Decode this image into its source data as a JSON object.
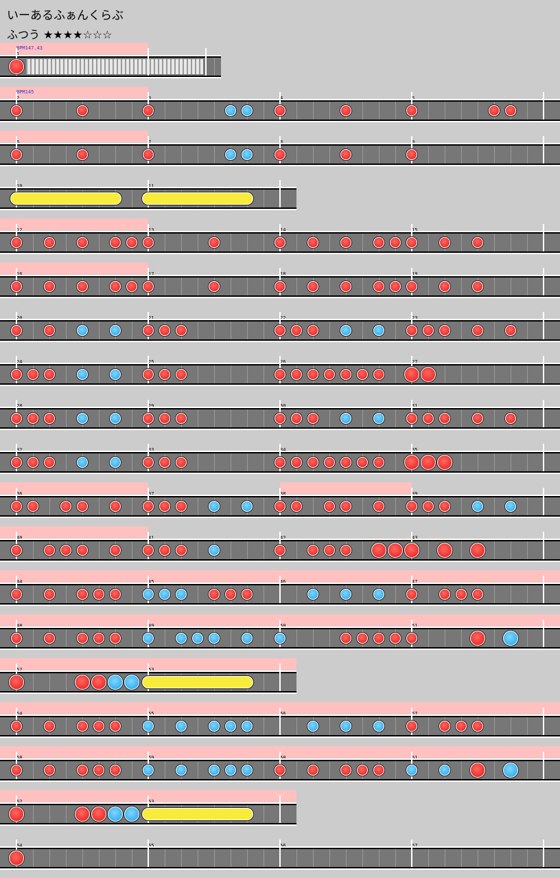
{
  "header": {
    "title": "いーあるふぁんくらぶ",
    "difficulty": "ふつう ★★★★☆☆☆"
  },
  "colors": {
    "background": "#cccccc",
    "lane": "#777777",
    "gogo_highlight": "#ffc0c0",
    "don": "#ee2f2f",
    "ka": "#3cb2ee",
    "roll": "#f8ec3a"
  },
  "rows": [
    {
      "measures": [
        1
      ],
      "bpm": "BPM147.43",
      "width": 322,
      "hl": [
        [
          0,
          216
        ]
      ],
      "stripe": [
        38,
        296
      ],
      "notes": [
        {
          "b": 0,
          "t": "D",
          "big": true
        }
      ]
    },
    {
      "measures": [
        2,
        3,
        4,
        5
      ],
      "bpm": "BPM145",
      "hl": [
        [
          0,
          216
        ]
      ],
      "notes": [
        {
          "b": 0,
          "t": "d"
        },
        {
          "b": 4,
          "t": "d"
        },
        {
          "b": 8,
          "t": "d"
        },
        {
          "b": 13,
          "t": "k"
        },
        {
          "b": 14,
          "t": "k"
        },
        {
          "b": 16,
          "t": "d"
        },
        {
          "b": 20,
          "t": "d"
        },
        {
          "b": 24,
          "t": "d"
        },
        {
          "b": 29,
          "t": "d"
        },
        {
          "b": 30,
          "t": "d"
        }
      ]
    },
    {
      "measures": [
        6,
        7,
        8,
        9
      ],
      "hl": [
        [
          0,
          216
        ]
      ],
      "notes": [
        {
          "b": 0,
          "t": "d"
        },
        {
          "b": 4,
          "t": "d"
        },
        {
          "b": 8,
          "t": "d"
        },
        {
          "b": 13,
          "t": "k"
        },
        {
          "b": 14,
          "t": "k"
        },
        {
          "b": 16,
          "t": "d"
        },
        {
          "b": 20,
          "t": "d"
        },
        {
          "b": 24,
          "t": "d"
        }
      ]
    },
    {
      "measures": [
        10,
        11
      ],
      "width": 432,
      "hl": [],
      "rolls": [
        [
          0,
          6
        ],
        [
          8,
          14
        ]
      ],
      "notes": []
    },
    {
      "measures": [
        12,
        13,
        14,
        15
      ],
      "hl": [
        [
          0,
          216
        ]
      ],
      "notes": [
        {
          "b": 0,
          "t": "d"
        },
        {
          "b": 2,
          "t": "d"
        },
        {
          "b": 4,
          "t": "d"
        },
        {
          "b": 6,
          "t": "d"
        },
        {
          "b": 7,
          "t": "d"
        },
        {
          "b": 8,
          "t": "d"
        },
        {
          "b": 12,
          "t": "d"
        },
        {
          "b": 16,
          "t": "d"
        },
        {
          "b": 18,
          "t": "d"
        },
        {
          "b": 20,
          "t": "d"
        },
        {
          "b": 22,
          "t": "d"
        },
        {
          "b": 23,
          "t": "d"
        },
        {
          "b": 24,
          "t": "d"
        },
        {
          "b": 26,
          "t": "d"
        },
        {
          "b": 28,
          "t": "d"
        }
      ]
    },
    {
      "measures": [
        16,
        17,
        18,
        19
      ],
      "hl": [
        [
          0,
          216
        ]
      ],
      "notes": [
        {
          "b": 0,
          "t": "d"
        },
        {
          "b": 2,
          "t": "d"
        },
        {
          "b": 4,
          "t": "d"
        },
        {
          "b": 6,
          "t": "d"
        },
        {
          "b": 7,
          "t": "d"
        },
        {
          "b": 8,
          "t": "d"
        },
        {
          "b": 12,
          "t": "d"
        },
        {
          "b": 16,
          "t": "d"
        },
        {
          "b": 18,
          "t": "d"
        },
        {
          "b": 20,
          "t": "d"
        },
        {
          "b": 22,
          "t": "d"
        },
        {
          "b": 23,
          "t": "d"
        },
        {
          "b": 24,
          "t": "d"
        },
        {
          "b": 26,
          "t": "d"
        },
        {
          "b": 28,
          "t": "d"
        }
      ]
    },
    {
      "measures": [
        20,
        21,
        22,
        23
      ],
      "hl": [],
      "notes": [
        {
          "b": 0,
          "t": "d"
        },
        {
          "b": 2,
          "t": "d"
        },
        {
          "b": 4,
          "t": "k"
        },
        {
          "b": 6,
          "t": "k"
        },
        {
          "b": 8,
          "t": "d"
        },
        {
          "b": 9,
          "t": "d"
        },
        {
          "b": 10,
          "t": "d"
        },
        {
          "b": 16,
          "t": "d"
        },
        {
          "b": 17,
          "t": "d"
        },
        {
          "b": 18,
          "t": "d"
        },
        {
          "b": 20,
          "t": "k"
        },
        {
          "b": 22,
          "t": "k"
        },
        {
          "b": 24,
          "t": "d"
        },
        {
          "b": 25,
          "t": "d"
        },
        {
          "b": 26,
          "t": "d"
        },
        {
          "b": 28,
          "t": "d"
        },
        {
          "b": 30,
          "t": "d"
        }
      ]
    },
    {
      "measures": [
        24,
        25,
        26,
        27
      ],
      "hl": [],
      "notes": [
        {
          "b": 0,
          "t": "d"
        },
        {
          "b": 1,
          "t": "d"
        },
        {
          "b": 2,
          "t": "d"
        },
        {
          "b": 4,
          "t": "k"
        },
        {
          "b": 6,
          "t": "k"
        },
        {
          "b": 8,
          "t": "d"
        },
        {
          "b": 9,
          "t": "d"
        },
        {
          "b": 10,
          "t": "d"
        },
        {
          "b": 16,
          "t": "d"
        },
        {
          "b": 17,
          "t": "d"
        },
        {
          "b": 18,
          "t": "d"
        },
        {
          "b": 19,
          "t": "d"
        },
        {
          "b": 20,
          "t": "d"
        },
        {
          "b": 21,
          "t": "d"
        },
        {
          "b": 22,
          "t": "d"
        },
        {
          "b": 24,
          "t": "D",
          "big": true
        },
        {
          "b": 25,
          "t": "D",
          "big": true
        }
      ]
    },
    {
      "measures": [
        28,
        29,
        30,
        31
      ],
      "hl": [],
      "notes": [
        {
          "b": 0,
          "t": "d"
        },
        {
          "b": 1,
          "t": "d"
        },
        {
          "b": 2,
          "t": "d"
        },
        {
          "b": 4,
          "t": "k"
        },
        {
          "b": 6,
          "t": "k"
        },
        {
          "b": 8,
          "t": "d"
        },
        {
          "b": 9,
          "t": "d"
        },
        {
          "b": 10,
          "t": "d"
        },
        {
          "b": 16,
          "t": "d"
        },
        {
          "b": 17,
          "t": "d"
        },
        {
          "b": 18,
          "t": "d"
        },
        {
          "b": 20,
          "t": "k"
        },
        {
          "b": 22,
          "t": "k"
        },
        {
          "b": 24,
          "t": "d"
        },
        {
          "b": 25,
          "t": "d"
        },
        {
          "b": 26,
          "t": "d"
        },
        {
          "b": 28,
          "t": "d"
        },
        {
          "b": 30,
          "t": "d"
        }
      ]
    },
    {
      "measures": [
        32,
        33,
        34,
        35
      ],
      "hl": [],
      "notes": [
        {
          "b": 0,
          "t": "d"
        },
        {
          "b": 1,
          "t": "d"
        },
        {
          "b": 2,
          "t": "d"
        },
        {
          "b": 4,
          "t": "k"
        },
        {
          "b": 6,
          "t": "k"
        },
        {
          "b": 8,
          "t": "d"
        },
        {
          "b": 9,
          "t": "d"
        },
        {
          "b": 10,
          "t": "d"
        },
        {
          "b": 16,
          "t": "d"
        },
        {
          "b": 17,
          "t": "d"
        },
        {
          "b": 18,
          "t": "d"
        },
        {
          "b": 19,
          "t": "d"
        },
        {
          "b": 20,
          "t": "d"
        },
        {
          "b": 21,
          "t": "d"
        },
        {
          "b": 22,
          "t": "d"
        },
        {
          "b": 24,
          "t": "D",
          "big": true
        },
        {
          "b": 25,
          "t": "D",
          "big": true
        },
        {
          "b": 26,
          "t": "D",
          "big": true
        }
      ]
    },
    {
      "measures": [
        36,
        37,
        38,
        39
      ],
      "hl": [
        [
          0,
          216
        ],
        [
          408,
          600
        ]
      ],
      "notes": [
        {
          "b": 0,
          "t": "d"
        },
        {
          "b": 1,
          "t": "d"
        },
        {
          "b": 3,
          "t": "d"
        },
        {
          "b": 4,
          "t": "d"
        },
        {
          "b": 6,
          "t": "d"
        },
        {
          "b": 8,
          "t": "d"
        },
        {
          "b": 9,
          "t": "d"
        },
        {
          "b": 10,
          "t": "d"
        },
        {
          "b": 12,
          "t": "k"
        },
        {
          "b": 14,
          "t": "k"
        },
        {
          "b": 16,
          "t": "d"
        },
        {
          "b": 17,
          "t": "d"
        },
        {
          "b": 19,
          "t": "d"
        },
        {
          "b": 20,
          "t": "d"
        },
        {
          "b": 22,
          "t": "d"
        },
        {
          "b": 24,
          "t": "d"
        },
        {
          "b": 25,
          "t": "d"
        },
        {
          "b": 26,
          "t": "d"
        },
        {
          "b": 28,
          "t": "k"
        },
        {
          "b": 30,
          "t": "k"
        }
      ]
    },
    {
      "measures": [
        40,
        41,
        42,
        43
      ],
      "hl": [
        [
          0,
          216
        ]
      ],
      "notes": [
        {
          "b": 0,
          "t": "d"
        },
        {
          "b": 2,
          "t": "d"
        },
        {
          "b": 3,
          "t": "d"
        },
        {
          "b": 4,
          "t": "d"
        },
        {
          "b": 6,
          "t": "d"
        },
        {
          "b": 8,
          "t": "d"
        },
        {
          "b": 9,
          "t": "d"
        },
        {
          "b": 10,
          "t": "d"
        },
        {
          "b": 12,
          "t": "k"
        },
        {
          "b": 16,
          "t": "d"
        },
        {
          "b": 18,
          "t": "d"
        },
        {
          "b": 19,
          "t": "d"
        },
        {
          "b": 20,
          "t": "d"
        },
        {
          "b": 22,
          "t": "D",
          "big": true
        },
        {
          "b": 23,
          "t": "D",
          "big": true
        },
        {
          "b": 24,
          "t": "D",
          "big": true
        },
        {
          "b": 26,
          "t": "D",
          "big": true
        },
        {
          "b": 28,
          "t": "D",
          "big": true
        }
      ]
    },
    {
      "measures": [
        44,
        45,
        46,
        47
      ],
      "hl": [
        [
          0,
          816
        ]
      ],
      "notes": [
        {
          "b": 0,
          "t": "d"
        },
        {
          "b": 2,
          "t": "d"
        },
        {
          "b": 4,
          "t": "d"
        },
        {
          "b": 5,
          "t": "d"
        },
        {
          "b": 6,
          "t": "d"
        },
        {
          "b": 8,
          "t": "k"
        },
        {
          "b": 9,
          "t": "k"
        },
        {
          "b": 10,
          "t": "k"
        },
        {
          "b": 12,
          "t": "d"
        },
        {
          "b": 13,
          "t": "d"
        },
        {
          "b": 14,
          "t": "d"
        },
        {
          "b": 18,
          "t": "k"
        },
        {
          "b": 20,
          "t": "k"
        },
        {
          "b": 22,
          "t": "k"
        },
        {
          "b": 24,
          "t": "d"
        },
        {
          "b": 26,
          "t": "d"
        },
        {
          "b": 27,
          "t": "d"
        },
        {
          "b": 28,
          "t": "d"
        }
      ]
    },
    {
      "measures": [
        48,
        49,
        50,
        51
      ],
      "hl": [
        [
          0,
          816
        ]
      ],
      "notes": [
        {
          "b": 0,
          "t": "d"
        },
        {
          "b": 2,
          "t": "d"
        },
        {
          "b": 4,
          "t": "d"
        },
        {
          "b": 5,
          "t": "d"
        },
        {
          "b": 6,
          "t": "d"
        },
        {
          "b": 8,
          "t": "k"
        },
        {
          "b": 10,
          "t": "k"
        },
        {
          "b": 11,
          "t": "k"
        },
        {
          "b": 12,
          "t": "k"
        },
        {
          "b": 14,
          "t": "k"
        },
        {
          "b": 16,
          "t": "k"
        },
        {
          "b": 20,
          "t": "d"
        },
        {
          "b": 21,
          "t": "d"
        },
        {
          "b": 22,
          "t": "d"
        },
        {
          "b": 23,
          "t": "d"
        },
        {
          "b": 24,
          "t": "d"
        },
        {
          "b": 28,
          "t": "D",
          "big": true
        },
        {
          "b": 30,
          "t": "K",
          "big": true
        }
      ]
    },
    {
      "measures": [
        52,
        53
      ],
      "width": 432,
      "hl": [
        [
          0,
          432
        ]
      ],
      "rolls": [
        [
          8,
          14
        ]
      ],
      "notes": [
        {
          "b": 0,
          "t": "D",
          "big": true
        },
        {
          "b": 4,
          "t": "D",
          "big": true
        },
        {
          "b": 5,
          "t": "D",
          "big": true
        },
        {
          "b": 6,
          "t": "K",
          "big": true
        },
        {
          "b": 7,
          "t": "K",
          "big": true
        }
      ]
    },
    {
      "measures": [
        54,
        55,
        56,
        57
      ],
      "hl": [
        [
          0,
          816
        ]
      ],
      "notes": [
        {
          "b": 0,
          "t": "d"
        },
        {
          "b": 2,
          "t": "d"
        },
        {
          "b": 4,
          "t": "d"
        },
        {
          "b": 5,
          "t": "d"
        },
        {
          "b": 6,
          "t": "d"
        },
        {
          "b": 8,
          "t": "k"
        },
        {
          "b": 10,
          "t": "k"
        },
        {
          "b": 12,
          "t": "k"
        },
        {
          "b": 13,
          "t": "k"
        },
        {
          "b": 14,
          "t": "k"
        },
        {
          "b": 18,
          "t": "k"
        },
        {
          "b": 20,
          "t": "k"
        },
        {
          "b": 22,
          "t": "k"
        },
        {
          "b": 24,
          "t": "d"
        },
        {
          "b": 26,
          "t": "d"
        },
        {
          "b": 27,
          "t": "d"
        },
        {
          "b": 28,
          "t": "d"
        }
      ]
    },
    {
      "measures": [
        58,
        59,
        60,
        61
      ],
      "hl": [
        [
          0,
          816
        ]
      ],
      "notes": [
        {
          "b": 0,
          "t": "d"
        },
        {
          "b": 2,
          "t": "d"
        },
        {
          "b": 4,
          "t": "d"
        },
        {
          "b": 5,
          "t": "d"
        },
        {
          "b": 6,
          "t": "d"
        },
        {
          "b": 8,
          "t": "k"
        },
        {
          "b": 10,
          "t": "k"
        },
        {
          "b": 12,
          "t": "k"
        },
        {
          "b": 13,
          "t": "k"
        },
        {
          "b": 14,
          "t": "k"
        },
        {
          "b": 16,
          "t": "d"
        },
        {
          "b": 18,
          "t": "d"
        },
        {
          "b": 20,
          "t": "d"
        },
        {
          "b": 21,
          "t": "d"
        },
        {
          "b": 22,
          "t": "d"
        },
        {
          "b": 24,
          "t": "k"
        },
        {
          "b": 26,
          "t": "k"
        },
        {
          "b": 28,
          "t": "D",
          "big": true
        },
        {
          "b": 30,
          "t": "K",
          "big": true
        }
      ]
    },
    {
      "measures": [
        62,
        63
      ],
      "width": 432,
      "hl": [
        [
          0,
          432
        ]
      ],
      "rolls": [
        [
          8,
          14
        ]
      ],
      "notes": [
        {
          "b": 0,
          "t": "D",
          "big": true
        },
        {
          "b": 4,
          "t": "D",
          "big": true
        },
        {
          "b": 5,
          "t": "D",
          "big": true
        },
        {
          "b": 6,
          "t": "K",
          "big": true
        },
        {
          "b": 7,
          "t": "K",
          "big": true
        }
      ]
    },
    {
      "measures": [
        64,
        65,
        66,
        67
      ],
      "hl": [],
      "notes": [
        {
          "b": 0,
          "t": "D",
          "big": true
        }
      ]
    }
  ]
}
